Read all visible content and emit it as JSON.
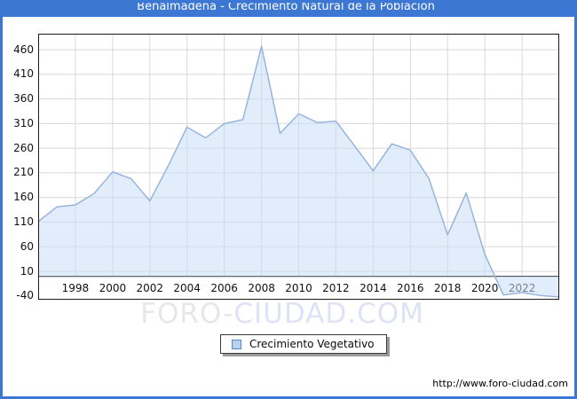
{
  "window": {
    "title": "Benalmádena - Crecimiento Natural de la Poblacion"
  },
  "chart_data": {
    "type": "area",
    "title": "Benalmádena - Crecimiento Natural de la Poblacion",
    "xlabel": "",
    "ylabel": "",
    "series_name": "Crecimiento Vegetativo",
    "x": [
      1996,
      1997,
      1998,
      1999,
      2000,
      2001,
      2002,
      2003,
      2004,
      2005,
      2006,
      2007,
      2008,
      2009,
      2010,
      2011,
      2012,
      2013,
      2014,
      2015,
      2016,
      2017,
      2018,
      2019,
      2020,
      2021,
      2022,
      2023,
      2024
    ],
    "values": [
      111,
      141,
      145,
      168,
      212,
      198,
      153,
      225,
      303,
      281,
      310,
      318,
      467,
      290,
      330,
      312,
      315,
      265,
      214,
      269,
      256,
      198,
      84,
      169,
      45,
      -38,
      -33,
      -39,
      -42
    ],
    "x_range": [
      1996,
      2024
    ],
    "ylim": [
      -47.5,
      492.5
    ],
    "baseline": 0,
    "grid": true,
    "legend_position": "bottom",
    "y_tick_labels": [
      "460",
      "410",
      "360",
      "310",
      "260",
      "210",
      "160",
      "110",
      "60",
      "10",
      "-40"
    ],
    "x_tick_labels": [
      "1998",
      "2000",
      "2002",
      "2004",
      "2006",
      "2008",
      "2010",
      "2012",
      "2014",
      "2016",
      "2018",
      "2020",
      "2022"
    ],
    "line_color": "#92b1de",
    "fill_color": "#c9def5",
    "grid_color": "#d8d8d8"
  },
  "legend": {
    "label": "Crecimiento Vegetativo",
    "swatch_color": "#b9d2ee",
    "swatch_border": "#5b87c5"
  },
  "watermark": {
    "part1": "FORO-",
    "part2": "CIUDAD.COM"
  },
  "footer": {
    "url": "http://www.foro-ciudad.com"
  },
  "colors": {
    "accent": "#3b77d3",
    "plot_border": "#1a1a1a",
    "zero_axis": "#333333",
    "background": "#ffffff"
  }
}
